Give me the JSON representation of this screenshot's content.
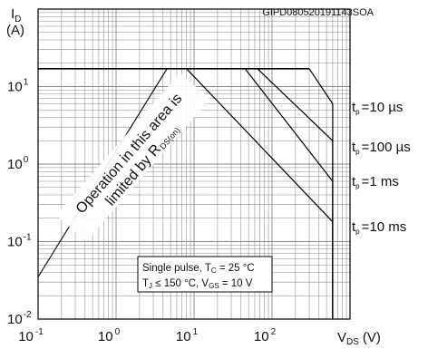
{
  "chart_data": {
    "type": "line",
    "title": "",
    "figure_code": "GIPD080520191143SOA",
    "x_scale": "log",
    "y_scale": "log",
    "xlim": [
      0.1,
      1000
    ],
    "ylim": [
      0.01,
      100
    ],
    "ylabel_main": "I",
    "ylabel_sub": "D",
    "ylabel_unit": "(A)",
    "xlabel_main": "V",
    "xlabel_sub": "DS",
    "xlabel_unit": "(V)",
    "x_ticks": [
      {
        "base": "10",
        "exp": "-1"
      },
      {
        "base": "10",
        "exp": "0"
      },
      {
        "base": "10",
        "exp": "1"
      },
      {
        "base": "10",
        "exp": "2"
      }
    ],
    "y_ticks": [
      {
        "base": "10",
        "exp": "-2"
      },
      {
        "base": "10",
        "exp": "-1"
      },
      {
        "base": "10",
        "exp": "0"
      },
      {
        "base": "10",
        "exp": "1"
      }
    ],
    "grid": true,
    "rds_line": {
      "x": [
        0.1,
        4.5
      ],
      "y": [
        0.035,
        17
      ]
    },
    "rds_annotation": {
      "line1": "Operation in this area is",
      "line2_prefix": "limited by R",
      "line2_sub": "DS(on)"
    },
    "current_limit": 17,
    "series": [
      {
        "name": "t_p = 10 µs",
        "label_main": "t",
        "label_sub": "p",
        "label_value": "=10 µs",
        "x": [
          0.1,
          300,
          600
        ],
        "y": [
          17,
          17,
          6.0
        ]
      },
      {
        "name": "t_p = 100 µs",
        "label_main": "t",
        "label_sub": "p",
        "label_value": "=100 µs",
        "x": [
          0.1,
          65,
          600
        ],
        "y": [
          17,
          17,
          2.0
        ]
      },
      {
        "name": "t_p = 1 ms",
        "label_main": "t",
        "label_sub": "p",
        "label_value": "=1 ms",
        "x": [
          0.1,
          45,
          600
        ],
        "y": [
          17,
          17,
          0.6
        ]
      },
      {
        "name": "t_p = 10 ms",
        "label_main": "t",
        "label_sub": "p",
        "label_value": "=10 ms",
        "x": [
          0.1,
          8,
          600
        ],
        "y": [
          17,
          17,
          0.18
        ]
      }
    ],
    "conditions": {
      "line1": "Single pulse, T",
      "line1_sub": "C",
      "line1_rest": " = 25 °C",
      "line2_a": "T",
      "line2_a_sub": "J",
      "line2_b": " ≤ 150 °C, V",
      "line2_b_sub": "GS",
      "line2_c": " = 10 V"
    },
    "colors": {
      "curve": "#000000",
      "grid": "#8a8a8a",
      "box": "#000000"
    }
  }
}
